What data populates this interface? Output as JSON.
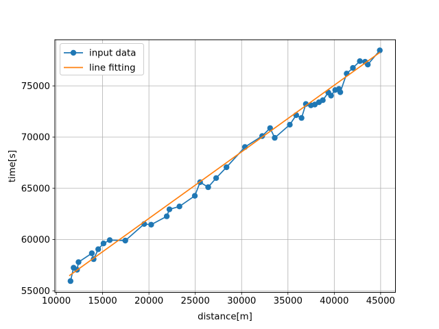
{
  "figure": {
    "background": "#ffffff",
    "plot_background": "#ffffff",
    "spine_color": "#000000"
  },
  "chart_data": {
    "type": "line",
    "title": "",
    "xlabel": "distance[m]",
    "ylabel": "time[s]",
    "xlim": [
      9850,
      46600
    ],
    "ylim": [
      54850,
      79500
    ],
    "xticks": [
      10000,
      15000,
      20000,
      25000,
      30000,
      35000,
      40000,
      45000
    ],
    "yticks": [
      55000,
      60000,
      65000,
      70000,
      75000
    ],
    "grid": true,
    "grid_color": "#b0b0b0",
    "legend": {
      "position": "upper-left",
      "border_color": "#cccccc",
      "background": "#ffffff"
    },
    "series": [
      {
        "name": "input data",
        "color": "#1f77b4",
        "marker": "circle",
        "line": true,
        "x": [
          11540,
          11870,
          12240,
          12400,
          13840,
          14030,
          14530,
          15100,
          15770,
          17450,
          19490,
          20240,
          21920,
          22210,
          23290,
          24950,
          25520,
          26390,
          27250,
          28370,
          30360,
          32220,
          33080,
          33570,
          35200,
          35890,
          36470,
          36930,
          37480,
          37900,
          38350,
          38760,
          39350,
          39650,
          40100,
          40500,
          40650,
          41340,
          42010,
          42760,
          43330,
          43620,
          44910
        ],
        "y": [
          55950,
          57250,
          57050,
          57800,
          58660,
          58090,
          59060,
          59620,
          59950,
          59900,
          61520,
          61450,
          62270,
          62950,
          63230,
          64270,
          65600,
          65110,
          66000,
          67060,
          69030,
          70100,
          70880,
          69930,
          71210,
          72140,
          71870,
          73230,
          73100,
          73180,
          73400,
          73600,
          74350,
          74050,
          74600,
          74700,
          74380,
          76200,
          76750,
          77410,
          77350,
          77080,
          78460
        ]
      },
      {
        "name": "line fitting",
        "color": "#ff7f0e",
        "marker": null,
        "line": true,
        "x": [
          11400,
          44950
        ],
        "y": [
          56470,
          78280
        ]
      }
    ]
  }
}
